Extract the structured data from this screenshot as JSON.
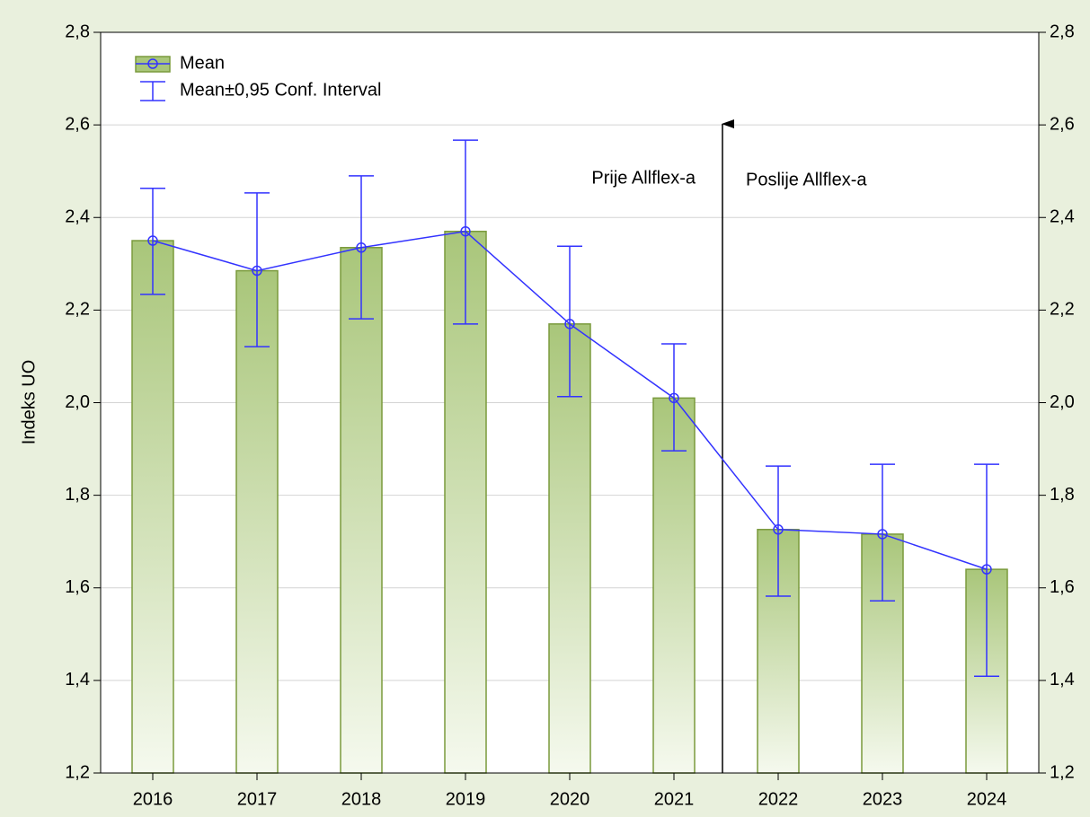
{
  "chart_data": {
    "type": "bar",
    "ylabel": "Indeks UO",
    "categories": [
      "2016",
      "2017",
      "2018",
      "2019",
      "2020",
      "2021",
      "2022",
      "2023",
      "2024"
    ],
    "series": [
      {
        "name": "Mean",
        "color": "#7a9a3c",
        "line_color": "#3333ff",
        "values": [
          2.35,
          2.285,
          2.335,
          2.37,
          2.17,
          2.01,
          1.726,
          1.716,
          1.64
        ],
        "ci_low": [
          2.234,
          2.121,
          2.181,
          2.17,
          2.013,
          1.896,
          1.582,
          1.572,
          1.409
        ],
        "ci_high": [
          2.463,
          2.453,
          2.49,
          2.567,
          2.338,
          2.127,
          1.863,
          1.867,
          1.867
        ]
      }
    ],
    "error_legend": "Mean±0,95 Conf. Interval",
    "annotations": [
      "Prije Allflex-a",
      "Poslije Allflex-a"
    ],
    "ylim": [
      1.2,
      2.8
    ],
    "yticks": [
      {
        "value": 1.2,
        "label": "1,2"
      },
      {
        "value": 1.4,
        "label": "1,4"
      },
      {
        "value": 1.6,
        "label": "1,6"
      },
      {
        "value": 1.8,
        "label": "1,8"
      },
      {
        "value": 2.0,
        "label": "2,0"
      },
      {
        "value": 2.2,
        "label": "2,2"
      },
      {
        "value": 2.4,
        "label": "2,4"
      },
      {
        "value": 2.6,
        "label": "2,6"
      },
      {
        "value": 2.8,
        "label": "2,8"
      }
    ],
    "grid": true
  }
}
